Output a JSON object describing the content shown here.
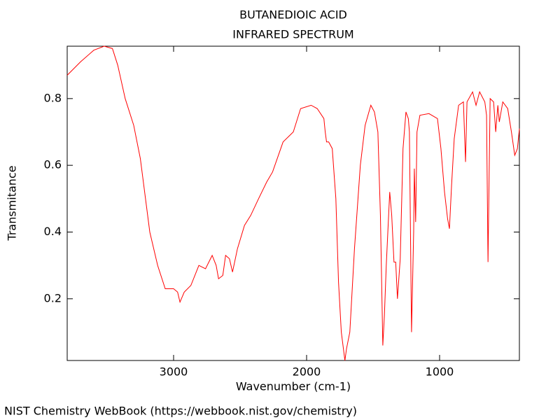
{
  "chart_data": {
    "type": "line",
    "title": "BUTANEDIOIC ACID",
    "subtitle": "INFRARED SPECTRUM",
    "x_label": "Wavenumber (cm-1)",
    "y_label": "Transmitance",
    "source": "NIST Chemistry WebBook (https://webbook.nist.gov/chemistry)",
    "color": "#ff0000",
    "xlim": [
      3800,
      400
    ],
    "ylim": [
      0.015,
      0.957
    ],
    "xticks": [
      3000,
      2000,
      1000
    ],
    "yticks": [
      0.2,
      0.4,
      0.6,
      0.8
    ],
    "x": [
      3800,
      3700,
      3600,
      3522,
      3460,
      3420,
      3364,
      3300,
      3250,
      3179,
      3120,
      3063,
      3000,
      2970,
      2952,
      2920,
      2870,
      2810,
      2760,
      2710,
      2680,
      2662,
      2630,
      2609,
      2580,
      2557,
      2520,
      2467,
      2420,
      2361,
      2300,
      2256,
      2177,
      2100,
      2045,
      1966,
      1920,
      1870,
      1860,
      1850,
      1834,
      1807,
      1780,
      1760,
      1739,
      1712,
      1700,
      1675,
      1640,
      1596,
      1560,
      1517,
      1490,
      1464,
      1445,
      1438,
      1427,
      1415,
      1401,
      1375,
      1360,
      1343,
      1330,
      1317,
      1296,
      1275,
      1253,
      1235,
      1227,
      1211,
      1195,
      1190,
      1180,
      1170,
      1148,
      1080,
      1016,
      990,
      963,
      940,
      926,
      910,
      890,
      857,
      821,
      805,
      794,
      752,
      726,
      699,
      660,
      647,
      636,
      620,
      594,
      578,
      562,
      551,
      525,
      488,
      460,
      435,
      415,
      400
    ],
    "values": [
      0.87,
      0.91,
      0.945,
      0.957,
      0.95,
      0.9,
      0.8,
      0.72,
      0.62,
      0.4,
      0.3,
      0.23,
      0.23,
      0.22,
      0.19,
      0.22,
      0.24,
      0.3,
      0.29,
      0.33,
      0.3,
      0.26,
      0.27,
      0.33,
      0.32,
      0.28,
      0.35,
      0.42,
      0.45,
      0.5,
      0.55,
      0.58,
      0.67,
      0.7,
      0.77,
      0.78,
      0.77,
      0.74,
      0.7,
      0.67,
      0.67,
      0.65,
      0.5,
      0.25,
      0.1,
      0.015,
      0.05,
      0.1,
      0.35,
      0.6,
      0.72,
      0.78,
      0.76,
      0.7,
      0.45,
      0.3,
      0.06,
      0.15,
      0.3,
      0.52,
      0.45,
      0.31,
      0.31,
      0.2,
      0.32,
      0.65,
      0.76,
      0.74,
      0.7,
      0.1,
      0.4,
      0.59,
      0.43,
      0.7,
      0.75,
      0.755,
      0.74,
      0.65,
      0.52,
      0.44,
      0.41,
      0.54,
      0.68,
      0.78,
      0.79,
      0.61,
      0.79,
      0.82,
      0.78,
      0.82,
      0.79,
      0.75,
      0.31,
      0.8,
      0.79,
      0.7,
      0.78,
      0.73,
      0.79,
      0.77,
      0.7,
      0.63,
      0.65,
      0.71
    ]
  }
}
